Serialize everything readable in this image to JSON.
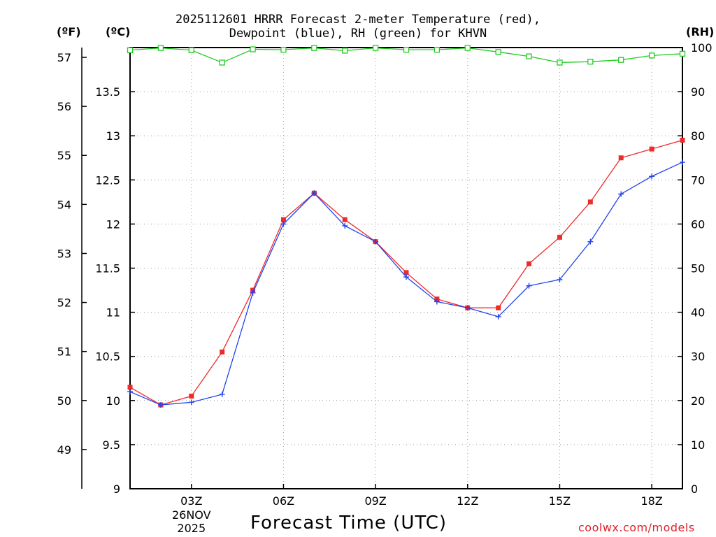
{
  "chart_data": {
    "type": "line",
    "title": "2025112601 HRRR Forecast 2-meter Temperature (red),",
    "subtitle": "Dewpoint (blue), RH (green) for KHVN",
    "xlabel": "Forecast Time (UTC)",
    "date_label": {
      "day": "26NOV",
      "year": "2025"
    },
    "units": {
      "fahrenheit": "(ºF)",
      "celsius": "(ºC)",
      "rh": "(RH)"
    },
    "x_hours": [
      1,
      2,
      3,
      4,
      5,
      6,
      7,
      8,
      9,
      10,
      11,
      12,
      13,
      14,
      15,
      16,
      17,
      18,
      19
    ],
    "x_ticks": [
      {
        "hour": 3,
        "label": "03Z"
      },
      {
        "hour": 6,
        "label": "06Z"
      },
      {
        "hour": 9,
        "label": "09Z"
      },
      {
        "hour": 12,
        "label": "12Z"
      },
      {
        "hour": 15,
        "label": "15Z"
      },
      {
        "hour": 18,
        "label": "18Z"
      }
    ],
    "xlim": [
      1,
      19
    ],
    "ylim_celsius": [
      9,
      14
    ],
    "celsius_ticks": [
      "9",
      "9.5",
      "10",
      "10.5",
      "11",
      "11.5",
      "12",
      "12.5",
      "13",
      "13.5"
    ],
    "fahrenheit_ticks": [
      "49",
      "50",
      "51",
      "52",
      "53",
      "54",
      "55",
      "56",
      "57"
    ],
    "rh_ticks": [
      "0",
      "10",
      "20",
      "30",
      "40",
      "50",
      "60",
      "70",
      "80",
      "90",
      "100"
    ],
    "ylim_rh": [
      0,
      100
    ],
    "grid": true,
    "series": [
      {
        "name": "Temperature",
        "axis": "celsius",
        "color": "#ee2a2a",
        "marker": "square",
        "values": [
          10.15,
          9.95,
          10.05,
          10.55,
          11.25,
          12.05,
          12.35,
          12.05,
          11.8,
          11.45,
          11.15,
          11.05,
          11.05,
          11.55,
          11.85,
          12.25,
          12.75,
          12.85,
          12.95
        ]
      },
      {
        "name": "Dewpoint",
        "axis": "celsius",
        "color": "#2244ee",
        "marker": "plus",
        "values": [
          10.1,
          9.95,
          9.98,
          10.07,
          11.22,
          12.0,
          12.35,
          11.98,
          11.8,
          11.4,
          11.12,
          11.05,
          10.95,
          11.3,
          11.37,
          11.8,
          12.34,
          12.54,
          12.7
        ]
      },
      {
        "name": "RH",
        "axis": "rh",
        "color": "#22cc22",
        "marker": "open-square",
        "values": [
          99.4,
          99.9,
          99.4,
          96.6,
          99.6,
          99.5,
          99.9,
          99.3,
          99.9,
          99.5,
          99.5,
          99.9,
          99.0,
          98.0,
          96.6,
          96.8,
          97.2,
          98.2,
          98.6
        ]
      }
    ]
  },
  "credit": "coolwx.com/models",
  "colors": {
    "temperature": "#ee2a2a",
    "dewpoint": "#2244ee",
    "rh": "#22cc22",
    "credit": "#e0202a"
  }
}
